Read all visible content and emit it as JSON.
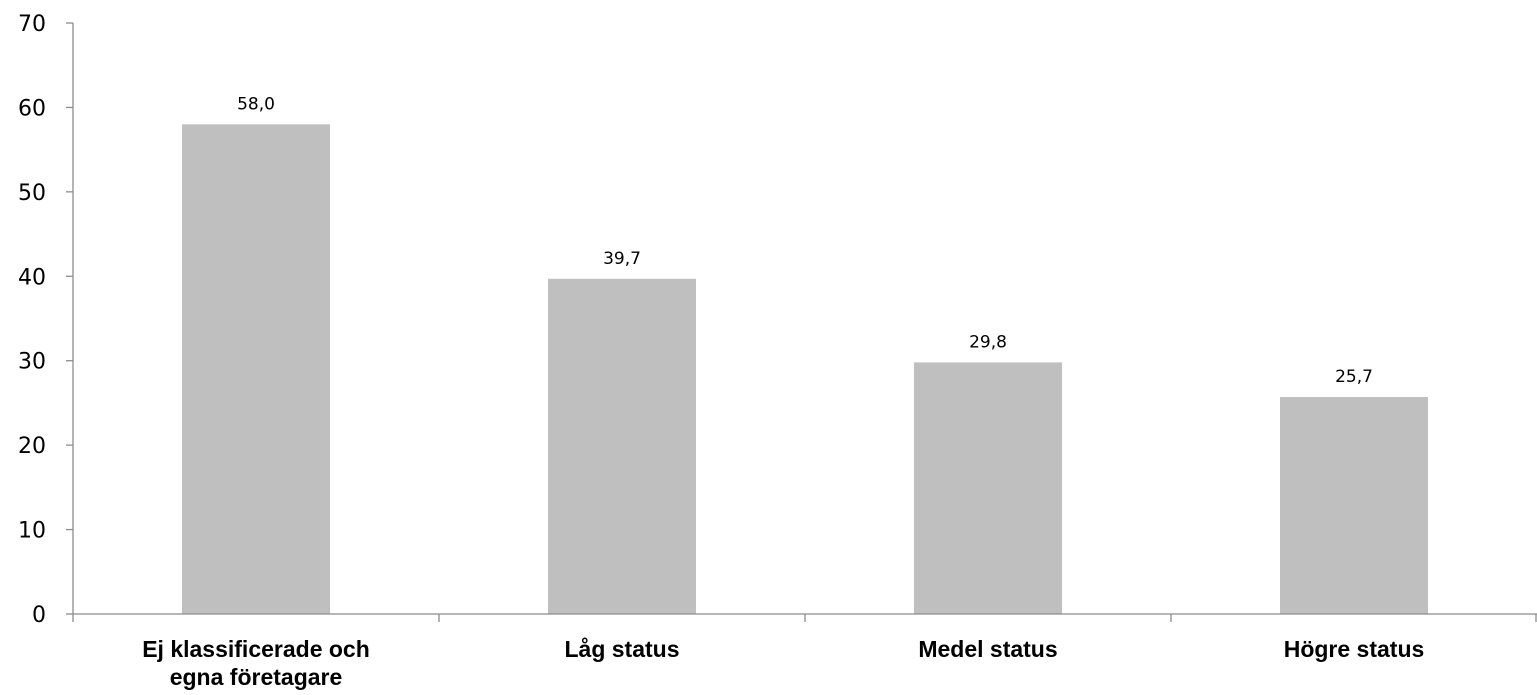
{
  "chart_data": {
    "type": "bar",
    "title": "",
    "xlabel": "",
    "ylabel": "",
    "categories": [
      [
        "Ej klassificerade och",
        "egna företagare"
      ],
      [
        "Låg status"
      ],
      [
        "Medel status"
      ],
      [
        "Högre status"
      ]
    ],
    "values": [
      58.0,
      39.7,
      29.8,
      25.7
    ],
    "data_labels": [
      "58,0",
      "39,7",
      "29,8",
      "25,7"
    ],
    "y_ticks": [
      0,
      10,
      20,
      30,
      40,
      50,
      60,
      70
    ],
    "ylim": [
      0,
      70
    ],
    "grid": false,
    "legend": "none",
    "bar_color": "#bfbfbf",
    "axis_color": "#8c8c8c"
  }
}
